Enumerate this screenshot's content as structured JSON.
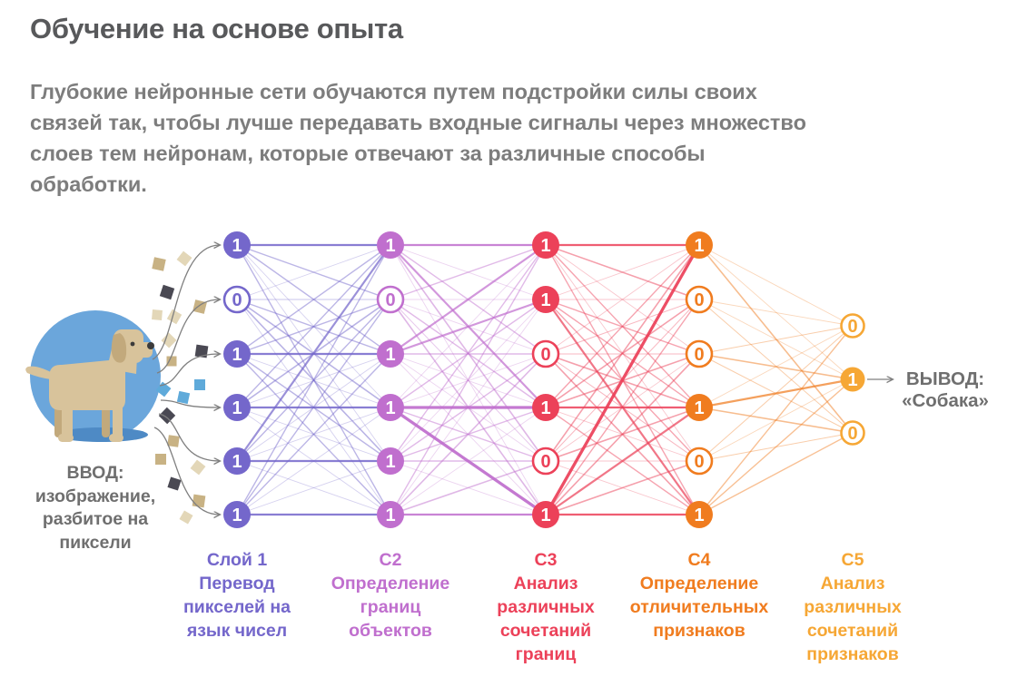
{
  "title": "Обучение на основе опыта",
  "intro": {
    "lines": [
      "Глубокие нейронные сети обучаются путем подстройки силы своих",
      "связей так, чтобы лучше передавать входные сигналы через множество",
      "слоев тем нейронам, которые отвечают за различные способы",
      "обработки."
    ]
  },
  "input": {
    "lines": [
      "ВВОД:",
      "изображение,",
      "разбитое на",
      "пиксели"
    ]
  },
  "output": {
    "lines": [
      "ВЫВОД:",
      "«Собака»"
    ]
  },
  "text": {
    "title_color": "#58595B",
    "body_color": "#7D7D7D",
    "label_color": "#6F6F6F"
  },
  "network": {
    "layers": [
      {
        "key": "layer1",
        "color": "#7467CB",
        "values": [
          "1",
          "0",
          "1",
          "1",
          "1",
          "1"
        ],
        "caption": [
          "Слой 1",
          "Перевод",
          "пикселей на",
          "язык чисел"
        ]
      },
      {
        "key": "layer2",
        "color": "#C06FCE",
        "values": [
          "1",
          "0",
          "1",
          "1",
          "1",
          "1"
        ],
        "caption": [
          "С2",
          "Определение",
          "границ",
          "объектов"
        ]
      },
      {
        "key": "layer3",
        "color": "#EC4159",
        "values": [
          "1",
          "1",
          "0",
          "1",
          "0",
          "1"
        ],
        "caption": [
          "С3",
          "Анализ",
          "различных",
          "сочетаний",
          "границ"
        ]
      },
      {
        "key": "layer4",
        "color": "#F07C1F",
        "values": [
          "1",
          "0",
          "0",
          "1",
          "0",
          "1"
        ],
        "caption": [
          "С4",
          "Определение",
          "отличительных",
          "признаков"
        ]
      },
      {
        "key": "layer5",
        "color": "#F6A735",
        "values": [
          "0",
          "1",
          "0"
        ],
        "caption": [
          "С5",
          "Анализ",
          "различных",
          "сочетаний",
          "признаков"
        ]
      }
    ]
  },
  "dog": {
    "circle": "#6BA6DB",
    "shadow": "#4E8AC5",
    "body": "#D8C39B",
    "dark": "#C2A97C",
    "features": "#3B3B3B"
  },
  "pixel_palette": [
    "#C8B284",
    "#E3D7B8",
    "#4A4953",
    "#5FAADA"
  ],
  "arrow_color": "#7F7F7F"
}
